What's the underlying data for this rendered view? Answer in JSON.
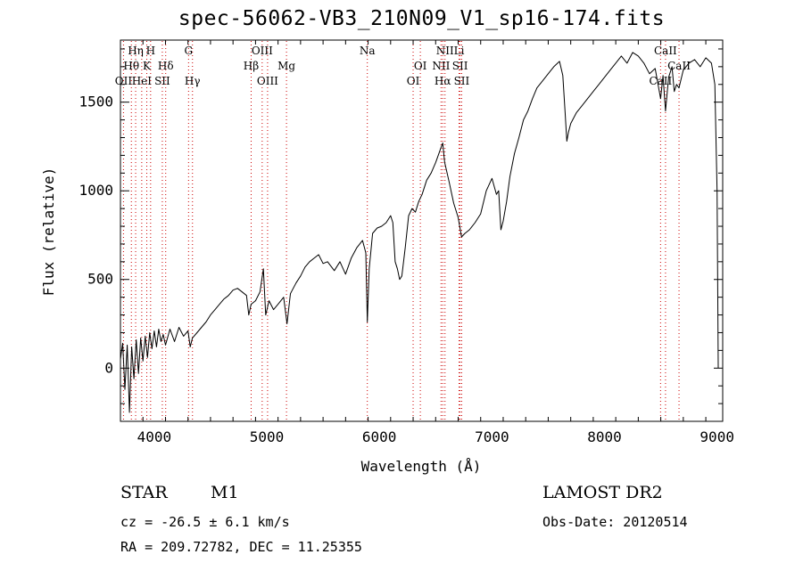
{
  "chart_data": {
    "type": "line",
    "title": "spec-56062-VB3_210N09_V1_sp16-174.fits",
    "xlabel": "Wavelength (Å)",
    "ylabel": "Flux (relative)",
    "xlim": [
      3700,
      9050
    ],
    "ylim": [
      -300,
      1850
    ],
    "xticks": [
      4000,
      5000,
      6000,
      7000,
      8000,
      9000
    ],
    "yticks": [
      0,
      500,
      1000,
      1500
    ],
    "grid": false,
    "series": [
      {
        "values": [
          [
            3700,
            50
          ],
          [
            3720,
            140
          ],
          [
            3740,
            -120
          ],
          [
            3760,
            130
          ],
          [
            3780,
            -250
          ],
          [
            3800,
            120
          ],
          [
            3820,
            -60
          ],
          [
            3840,
            160
          ],
          [
            3860,
            -30
          ],
          [
            3880,
            170
          ],
          [
            3900,
            40
          ],
          [
            3920,
            180
          ],
          [
            3940,
            60
          ],
          [
            3960,
            200
          ],
          [
            3980,
            110
          ],
          [
            4000,
            210
          ],
          [
            4020,
            120
          ],
          [
            4040,
            220
          ],
          [
            4060,
            150
          ],
          [
            4080,
            190
          ],
          [
            4100,
            130
          ],
          [
            4140,
            220
          ],
          [
            4180,
            150
          ],
          [
            4220,
            230
          ],
          [
            4260,
            180
          ],
          [
            4300,
            210
          ],
          [
            4320,
            120
          ],
          [
            4340,
            170
          ],
          [
            4380,
            200
          ],
          [
            4420,
            230
          ],
          [
            4460,
            260
          ],
          [
            4500,
            300
          ],
          [
            4540,
            330
          ],
          [
            4580,
            360
          ],
          [
            4620,
            390
          ],
          [
            4660,
            410
          ],
          [
            4700,
            440
          ],
          [
            4740,
            450
          ],
          [
            4780,
            430
          ],
          [
            4820,
            410
          ],
          [
            4840,
            300
          ],
          [
            4860,
            360
          ],
          [
            4900,
            380
          ],
          [
            4940,
            430
          ],
          [
            4970,
            560
          ],
          [
            4990,
            300
          ],
          [
            5020,
            380
          ],
          [
            5060,
            330
          ],
          [
            5100,
            360
          ],
          [
            5150,
            400
          ],
          [
            5180,
            250
          ],
          [
            5210,
            420
          ],
          [
            5260,
            480
          ],
          [
            5300,
            520
          ],
          [
            5340,
            570
          ],
          [
            5380,
            600
          ],
          [
            5420,
            620
          ],
          [
            5460,
            640
          ],
          [
            5500,
            590
          ],
          [
            5540,
            600
          ],
          [
            5600,
            550
          ],
          [
            5650,
            600
          ],
          [
            5700,
            530
          ],
          [
            5750,
            620
          ],
          [
            5800,
            680
          ],
          [
            5850,
            720
          ],
          [
            5880,
            650
          ],
          [
            5893,
            260
          ],
          [
            5910,
            560
          ],
          [
            5940,
            760
          ],
          [
            5980,
            790
          ],
          [
            6020,
            800
          ],
          [
            6060,
            820
          ],
          [
            6100,
            860
          ],
          [
            6120,
            820
          ],
          [
            6140,
            600
          ],
          [
            6160,
            560
          ],
          [
            6180,
            500
          ],
          [
            6200,
            520
          ],
          [
            6230,
            680
          ],
          [
            6260,
            860
          ],
          [
            6290,
            900
          ],
          [
            6320,
            880
          ],
          [
            6350,
            940
          ],
          [
            6380,
            980
          ],
          [
            6420,
            1060
          ],
          [
            6460,
            1100
          ],
          [
            6500,
            1160
          ],
          [
            6540,
            1230
          ],
          [
            6563,
            1270
          ],
          [
            6580,
            1160
          ],
          [
            6620,
            1050
          ],
          [
            6660,
            930
          ],
          [
            6700,
            850
          ],
          [
            6730,
            740
          ],
          [
            6760,
            760
          ],
          [
            6800,
            780
          ],
          [
            6850,
            820
          ],
          [
            6900,
            870
          ],
          [
            6950,
            1000
          ],
          [
            7000,
            1070
          ],
          [
            7040,
            980
          ],
          [
            7060,
            1000
          ],
          [
            7080,
            780
          ],
          [
            7100,
            830
          ],
          [
            7130,
            940
          ],
          [
            7160,
            1080
          ],
          [
            7200,
            1210
          ],
          [
            7240,
            1300
          ],
          [
            7280,
            1400
          ],
          [
            7320,
            1450
          ],
          [
            7360,
            1520
          ],
          [
            7400,
            1580
          ],
          [
            7450,
            1620
          ],
          [
            7500,
            1660
          ],
          [
            7550,
            1700
          ],
          [
            7600,
            1730
          ],
          [
            7630,
            1650
          ],
          [
            7650,
            1440
          ],
          [
            7665,
            1280
          ],
          [
            7680,
            1330
          ],
          [
            7700,
            1380
          ],
          [
            7750,
            1440
          ],
          [
            7800,
            1480
          ],
          [
            7850,
            1520
          ],
          [
            7900,
            1560
          ],
          [
            7950,
            1600
          ],
          [
            8000,
            1640
          ],
          [
            8050,
            1680
          ],
          [
            8100,
            1720
          ],
          [
            8150,
            1760
          ],
          [
            8200,
            1720
          ],
          [
            8250,
            1780
          ],
          [
            8300,
            1760
          ],
          [
            8350,
            1720
          ],
          [
            8400,
            1660
          ],
          [
            8450,
            1690
          ],
          [
            8498,
            1520
          ],
          [
            8520,
            1650
          ],
          [
            8542,
            1450
          ],
          [
            8570,
            1640
          ],
          [
            8600,
            1700
          ],
          [
            8620,
            1560
          ],
          [
            8640,
            1600
          ],
          [
            8662,
            1580
          ],
          [
            8700,
            1680
          ],
          [
            8750,
            1720
          ],
          [
            8800,
            1740
          ],
          [
            8850,
            1700
          ],
          [
            8900,
            1750
          ],
          [
            8950,
            1720
          ],
          [
            8980,
            1600
          ],
          [
            9000,
            1000
          ],
          [
            9010,
            0
          ]
        ]
      }
    ],
    "lines": [
      {
        "label": "Hη",
        "x": 3835,
        "row": 0
      },
      {
        "label": "Hθ",
        "x": 3797,
        "row": 1
      },
      {
        "label": "OII",
        "x": 3727,
        "row": 2
      },
      {
        "label": "H",
        "x": 3968,
        "row": 0
      },
      {
        "label": "K",
        "x": 3934,
        "row": 1
      },
      {
        "label": "HeI",
        "x": 3889,
        "row": 2
      },
      {
        "label": "SII",
        "x": 4072,
        "row": 2
      },
      {
        "label": "Hδ",
        "x": 4102,
        "row": 1
      },
      {
        "label": "G",
        "x": 4305,
        "row": 0
      },
      {
        "label": "Hγ",
        "x": 4340,
        "row": 2
      },
      {
        "label": "OIII",
        "x": 4959,
        "row": 0
      },
      {
        "label": "Hβ",
        "x": 4861,
        "row": 1
      },
      {
        "label": "OIII",
        "x": 5007,
        "row": 2
      },
      {
        "label": "Mg",
        "x": 5175,
        "row": 1
      },
      {
        "label": "Na",
        "x": 5893,
        "row": 0
      },
      {
        "label": "OI",
        "x": 6364,
        "row": 1
      },
      {
        "label": "OI",
        "x": 6300,
        "row": 2
      },
      {
        "label": "NII",
        "x": 6583,
        "row": 0
      },
      {
        "label": "NII",
        "x": 6548,
        "row": 1
      },
      {
        "label": "Hα",
        "x": 6563,
        "row": 2
      },
      {
        "label": "Li",
        "x": 6708,
        "row": 0
      },
      {
        "label": "SII",
        "x": 6717,
        "row": 1
      },
      {
        "label": "SII",
        "x": 6731,
        "row": 2
      },
      {
        "label": "CaII",
        "x": 8542,
        "row": 0
      },
      {
        "label": "CaII",
        "x": 8662,
        "row": 1
      },
      {
        "label": "CaII",
        "x": 8498,
        "row": 2
      }
    ]
  },
  "info": {
    "class_label": "STAR",
    "subclass": "M1",
    "survey": "LAMOST DR2",
    "cz": "cz = -26.5 ± 6.1 km/s",
    "obs_date": "Obs-Date: 20120514",
    "coords": "RA = 209.72782, DEC =  11.25355"
  },
  "colors": {
    "line_marker": "#cc0000",
    "spectrum": "#000000"
  }
}
